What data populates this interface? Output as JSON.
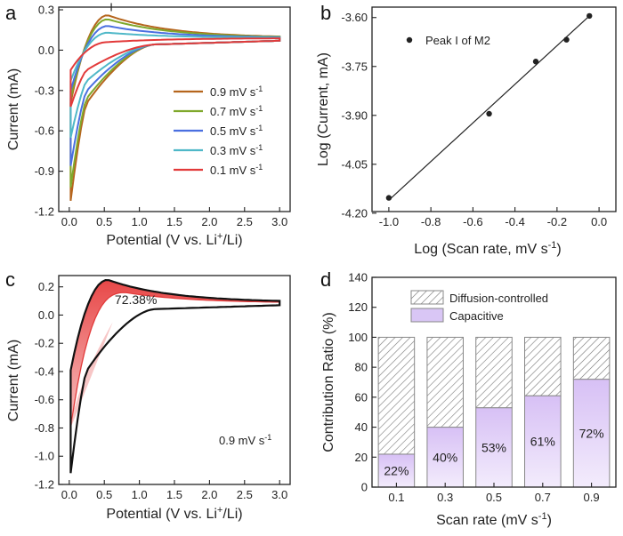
{
  "chart_data": [
    {
      "panel": "a",
      "type": "line",
      "xlabel": "Potential (V vs. Li+/Li)",
      "ylabel": "Current (mA)",
      "xlim": [
        -0.15,
        3.15
      ],
      "ylim": [
        -1.2,
        0.32
      ],
      "xticks": [
        "0.0",
        "0.5",
        "1.0",
        "1.5",
        "2.0",
        "2.5",
        "3.0"
      ],
      "yticks": [
        "-1.2",
        "-0.9",
        "-0.6",
        "-0.3",
        "0.0",
        "0.3"
      ],
      "annotation": "I",
      "series": [
        {
          "name": "0.9 mV s-1",
          "label": "0.9 mV s",
          "sup": "-1",
          "color": "#b5651d",
          "peak": 0.26,
          "min": -1.12
        },
        {
          "name": "0.7 mV s-1",
          "label": "0.7 mV s",
          "sup": "-1",
          "color": "#7fa82b",
          "peak": 0.23,
          "min": -1.02
        },
        {
          "name": "0.5 mV s-1",
          "label": "0.5 mV s",
          "sup": "-1",
          "color": "#4a6fe0",
          "peak": 0.18,
          "min": -0.86
        },
        {
          "name": "0.3 mV s-1",
          "label": "0.3 mV s",
          "sup": "-1",
          "color": "#4fb8c8",
          "peak": 0.13,
          "min": -0.65
        },
        {
          "name": "0.1 mV s-1",
          "label": "0.1 mV s",
          "sup": "-1",
          "color": "#e23a3a",
          "peak": 0.06,
          "min": -0.42
        }
      ]
    },
    {
      "panel": "b",
      "type": "scatter",
      "xlabel": "Log (Scan rate, mV s-1)",
      "ylabel": "Log (Current, mA)",
      "xlim": [
        -1.08,
        0.08
      ],
      "ylim": [
        -4.18,
        -3.57
      ],
      "xticks": [
        "-1.0",
        "-0.8",
        "-0.6",
        "-0.4",
        "-0.2",
        "0.0"
      ],
      "yticks": [
        "-4.20",
        "-4.05",
        "-3.90",
        "-3.75",
        "-3.60"
      ],
      "legend": "Peak I of M2",
      "x": [
        -1.0,
        -0.523,
        -0.301,
        -0.155,
        -0.046
      ],
      "y": [
        -4.153,
        -3.895,
        -3.735,
        -3.668,
        -3.595
      ],
      "fit": {
        "x": [
          -1.0,
          -0.046
        ],
        "y": [
          -4.16,
          -3.595
        ]
      }
    },
    {
      "panel": "c",
      "type": "area",
      "xlabel": "Potential (V vs. Li+/Li)",
      "ylabel": "Current (mA)",
      "xlim": [
        -0.15,
        3.15
      ],
      "ylim": [
        -1.2,
        0.28
      ],
      "xticks": [
        "0.0",
        "0.5",
        "1.0",
        "1.5",
        "2.0",
        "2.5",
        "3.0"
      ],
      "yticks": [
        "-1.2",
        "-1.0",
        "-0.8",
        "-0.6",
        "-0.4",
        "-0.2",
        "0.0",
        "0.2"
      ],
      "annotation": "72.38%",
      "scan_label": "0.9 mV s",
      "scan_sup": "-1"
    },
    {
      "panel": "d",
      "type": "bar",
      "xlabel": "Scan rate (mV s-1)",
      "ylabel": "Contribution Ratio (%)",
      "ylim": [
        0,
        140
      ],
      "yticks": [
        "0",
        "20",
        "40",
        "60",
        "80",
        "100",
        "120",
        "140"
      ],
      "categories": [
        "0.1",
        "0.3",
        "0.5",
        "0.7",
        "0.9"
      ],
      "series": [
        {
          "name": "Capacitive",
          "values": [
            22,
            40,
            53,
            61,
            72
          ],
          "color": "#d9c6f5"
        },
        {
          "name": "Diffusion-controlled",
          "values": [
            78,
            60,
            47,
            39,
            28
          ],
          "color": "hatch"
        }
      ],
      "labels": [
        "22%",
        "40%",
        "53%",
        "61%",
        "72%"
      ]
    }
  ]
}
